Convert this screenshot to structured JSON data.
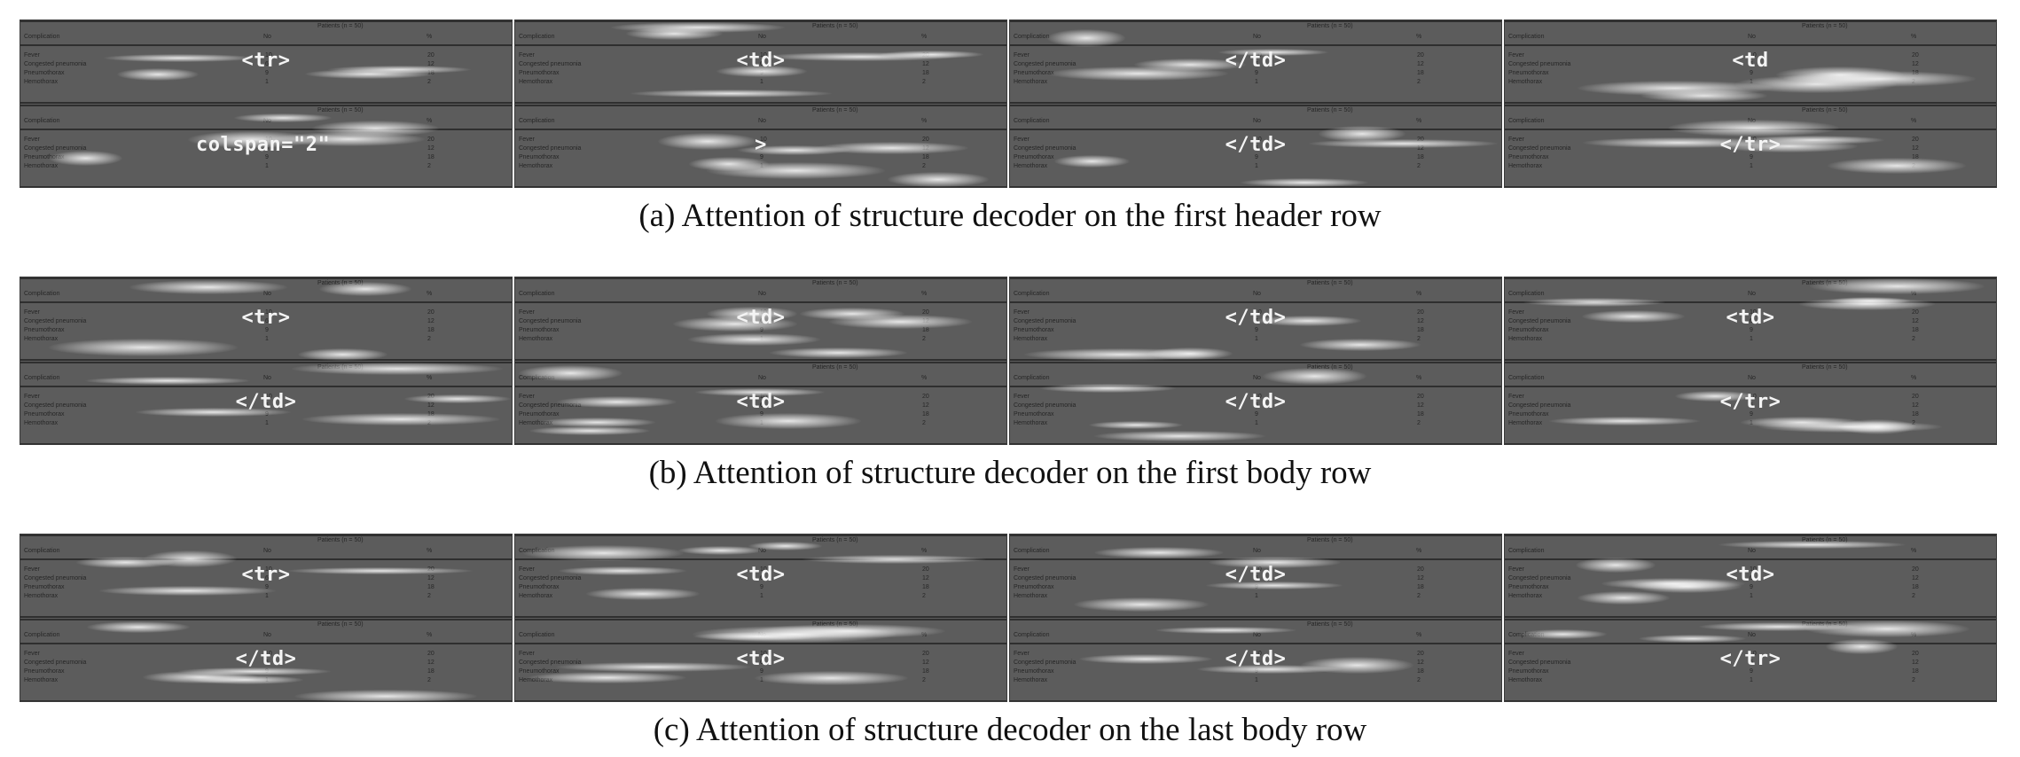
{
  "table_text": {
    "header_span": "Patients (n = 50)",
    "col_complication": "Complication",
    "col_no": "No",
    "col_pct": "%",
    "rows": [
      {
        "label": "Fever",
        "no": "10",
        "pct": "20"
      },
      {
        "label": "Congested pneumonia",
        "no": "6",
        "pct": "12"
      },
      {
        "label": "Pneumothorax",
        "no": "9",
        "pct": "18"
      },
      {
        "label": "Hemothorax",
        "no": "1",
        "pct": "2"
      }
    ]
  },
  "figures": [
    {
      "caption": "(a) Attention of structure decoder on the first header row",
      "tokens": [
        "<tr>",
        "<td>",
        "</td>",
        "<td",
        "colspan=\"2\"",
        ">",
        "</td>",
        "</tr>"
      ]
    },
    {
      "caption": "(b) Attention of structure decoder on the first body row",
      "tokens": [
        "<tr>",
        "<td>",
        "</td>",
        "<td>",
        "</td>",
        "<td>",
        "</td>",
        "</tr>"
      ]
    },
    {
      "caption": "(c) Attention of structure decoder on the last body row",
      "tokens": [
        "<tr>",
        "<td>",
        "</td>",
        "<td>",
        "</td>",
        "<td>",
        "</td>",
        "</tr>"
      ]
    }
  ]
}
